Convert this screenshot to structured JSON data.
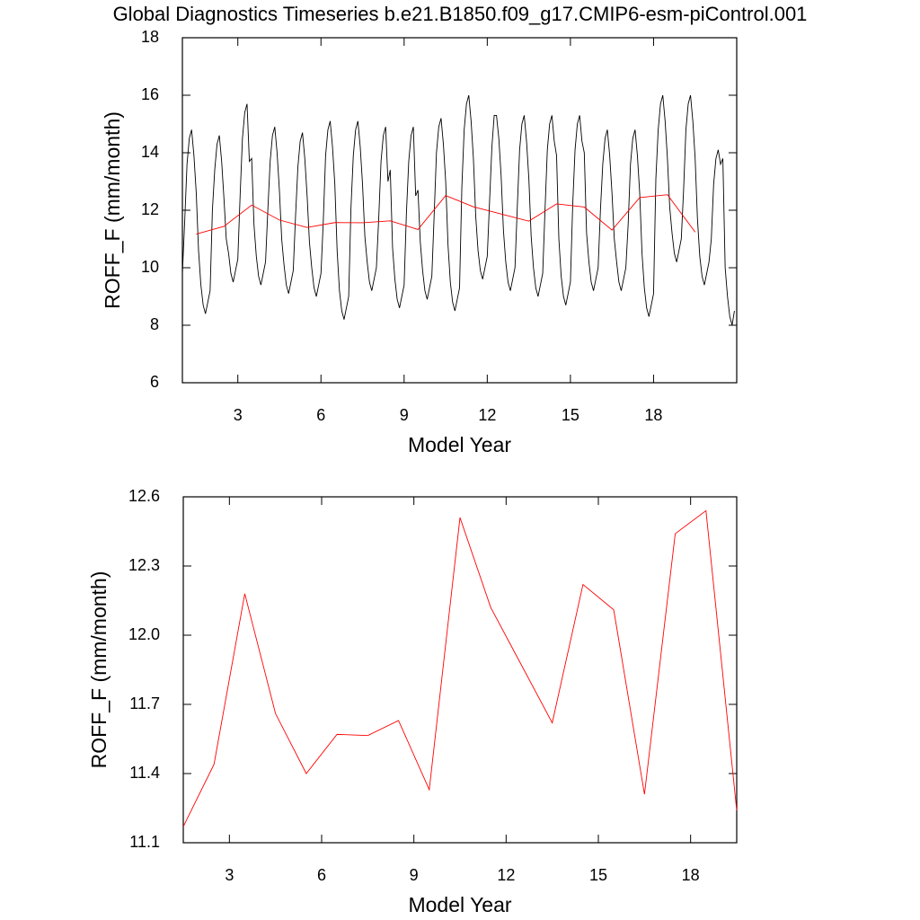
{
  "chart_data": [
    {
      "type": "line",
      "title": "Global Diagnostics Timeseries b.e21.B1850.f09_g17.CMIP6-esm-piControl.001",
      "xlabel": "Model Year",
      "ylabel": "ROFF_F (mm/month)",
      "xlim": [
        1,
        21
      ],
      "ylim": [
        6,
        18
      ],
      "xticks": [
        3,
        6,
        9,
        12,
        15,
        18
      ],
      "yticks": [
        6,
        8,
        10,
        12,
        14,
        16,
        18
      ],
      "series": [
        {
          "color": "#000000",
          "x": [
            1,
            1.083,
            1.167,
            1.25,
            1.333,
            1.417,
            1.5,
            1.583,
            1.667,
            1.75,
            1.833,
            1.917,
            2,
            2.083,
            2.167,
            2.25,
            2.333,
            2.417,
            2.5,
            2.583,
            2.667,
            2.75,
            2.833,
            2.917,
            3,
            3.083,
            3.167,
            3.25,
            3.333,
            3.417,
            3.5,
            3.583,
            3.667,
            3.75,
            3.833,
            3.917,
            4,
            4.083,
            4.167,
            4.25,
            4.333,
            4.417,
            4.5,
            4.583,
            4.667,
            4.75,
            4.833,
            4.917,
            5,
            5.083,
            5.167,
            5.25,
            5.333,
            5.417,
            5.5,
            5.583,
            5.667,
            5.75,
            5.833,
            5.917,
            6,
            6.083,
            6.167,
            6.25,
            6.333,
            6.417,
            6.5,
            6.583,
            6.667,
            6.75,
            6.833,
            6.917,
            7,
            7.083,
            7.167,
            7.25,
            7.333,
            7.417,
            7.5,
            7.583,
            7.667,
            7.75,
            7.833,
            7.917,
            8,
            8.083,
            8.167,
            8.25,
            8.333,
            8.417,
            8.5,
            8.583,
            8.667,
            8.75,
            8.833,
            8.917,
            9,
            9.083,
            9.167,
            9.25,
            9.333,
            9.417,
            9.5,
            9.583,
            9.667,
            9.75,
            9.833,
            9.917,
            10,
            10.083,
            10.167,
            10.25,
            10.333,
            10.417,
            10.5,
            10.583,
            10.667,
            10.75,
            10.833,
            10.917,
            11,
            11.083,
            11.167,
            11.25,
            11.333,
            11.417,
            11.5,
            11.583,
            11.667,
            11.75,
            11.833,
            11.917,
            12,
            12.083,
            12.167,
            12.25,
            12.333,
            12.417,
            12.5,
            12.583,
            12.667,
            12.75,
            12.833,
            12.917,
            13,
            13.083,
            13.167,
            13.25,
            13.333,
            13.417,
            13.5,
            13.583,
            13.667,
            13.75,
            13.833,
            13.917,
            14,
            14.083,
            14.167,
            14.25,
            14.333,
            14.417,
            14.5,
            14.583,
            14.667,
            14.75,
            14.833,
            14.917,
            15,
            15.083,
            15.167,
            15.25,
            15.333,
            15.417,
            15.5,
            15.583,
            15.667,
            15.75,
            15.833,
            15.917,
            16,
            16.083,
            16.167,
            16.25,
            16.333,
            16.417,
            16.5,
            16.583,
            16.667,
            16.75,
            16.833,
            16.917,
            17,
            17.083,
            17.167,
            17.25,
            17.333,
            17.417,
            17.5,
            17.583,
            17.667,
            17.75,
            17.833,
            17.917,
            18,
            18.083,
            18.167,
            18.25,
            18.333,
            18.417,
            18.5,
            18.583,
            18.667,
            18.75,
            18.833,
            18.917,
            19,
            19.083,
            19.167,
            19.25,
            19.333,
            19.417,
            19.5,
            19.583,
            19.667,
            19.75,
            19.833,
            19.917,
            20,
            20.083,
            20.167,
            20.25,
            20.333,
            20.417,
            20.5,
            20.583,
            20.667,
            20.75,
            20.833,
            20.917
          ],
          "values": [
            9.8,
            11.6,
            13.6,
            14.5,
            14.8,
            13.9,
            12.6,
            10.6,
            9.4,
            8.7,
            8.4,
            8.8,
            9.2,
            12.0,
            13.4,
            14.3,
            14.6,
            13.7,
            12.4,
            11.0,
            10.5,
            9.8,
            9.5,
            9.9,
            10.3,
            12.5,
            14.5,
            15.4,
            15.7,
            13.7,
            13.8,
            11.5,
            10.4,
            9.7,
            9.4,
            9.8,
            10.2,
            12.0,
            13.7,
            14.6,
            14.9,
            14.0,
            12.7,
            11.0,
            10.1,
            9.4,
            9.1,
            9.5,
            9.9,
            11.8,
            13.5,
            14.4,
            14.7,
            13.8,
            12.5,
            10.9,
            10.0,
            9.3,
            9.0,
            9.4,
            9.8,
            11.6,
            13.9,
            14.8,
            15.1,
            14.2,
            12.9,
            10.6,
            9.2,
            8.5,
            8.2,
            8.6,
            9.0,
            12.1,
            13.9,
            14.8,
            15.1,
            14.2,
            12.9,
            11.1,
            10.2,
            9.5,
            9.2,
            9.6,
            10.0,
            11.7,
            13.7,
            14.6,
            14.9,
            13.0,
            13.4,
            10.7,
            9.6,
            8.9,
            8.6,
            9.0,
            9.4,
            11.9,
            13.7,
            14.6,
            14.9,
            12.5,
            12.7,
            10.9,
            9.9,
            9.2,
            8.9,
            9.3,
            9.7,
            11.8,
            14.0,
            14.9,
            15.2,
            14.3,
            13.0,
            10.8,
            9.5,
            8.8,
            8.5,
            8.9,
            9.3,
            12.8,
            14.8,
            15.7,
            16.0,
            15.1,
            13.8,
            11.8,
            10.6,
            9.9,
            9.6,
            10.0,
            10.4,
            12.3,
            14.2,
            15.3,
            15.3,
            14.5,
            13.2,
            11.3,
            10.2,
            9.5,
            9.2,
            9.6,
            10.0,
            12.1,
            14.1,
            15.0,
            15.3,
            14.4,
            13.1,
            11.1,
            10.0,
            9.3,
            9.0,
            9.4,
            9.8,
            12.0,
            14.1,
            15.0,
            15.3,
            14.4,
            13.9,
            11.0,
            9.7,
            9.0,
            8.7,
            9.1,
            9.5,
            12.2,
            14.1,
            15.0,
            15.3,
            14.4,
            14.0,
            11.2,
            10.2,
            9.5,
            9.2,
            9.6,
            10.0,
            12.0,
            13.6,
            14.5,
            14.8,
            13.9,
            12.6,
            11.0,
            10.2,
            9.5,
            9.2,
            9.6,
            10.0,
            11.5,
            13.6,
            14.5,
            14.8,
            13.9,
            12.6,
            10.5,
            9.3,
            8.6,
            8.3,
            8.7,
            9.1,
            13.1,
            14.8,
            15.7,
            16.0,
            15.1,
            13.8,
            12.1,
            11.2,
            10.5,
            10.2,
            10.6,
            11.0,
            12.7,
            14.8,
            15.7,
            16.0,
            15.1,
            13.8,
            11.7,
            10.4,
            9.7,
            9.4,
            9.8,
            10.2,
            11.0,
            12.9,
            13.8,
            14.1,
            13.6,
            13.8,
            10.0,
            9.0,
            8.3,
            8.0,
            8.5
          ]
        },
        {
          "color": "#ff0000",
          "x": [
            1.5,
            2.5,
            3.5,
            4.5,
            5.5,
            6.5,
            7.5,
            8.5,
            9.5,
            10.5,
            11.5,
            12.5,
            13.5,
            14.5,
            15.5,
            16.5,
            17.5,
            18.5,
            19.5
          ],
          "values": [
            11.17,
            11.44,
            12.18,
            11.66,
            11.4,
            11.57,
            11.565,
            11.63,
            11.33,
            12.51,
            12.12,
            11.87,
            11.62,
            12.22,
            12.11,
            11.31,
            12.44,
            12.54,
            11.24
          ]
        }
      ]
    },
    {
      "type": "line",
      "xlabel": "Model Year",
      "ylabel": "ROFF_F (mm/month)",
      "xlim": [
        1.5,
        19.5
      ],
      "ylim": [
        11.1,
        12.6
      ],
      "xticks": [
        3,
        6,
        9,
        12,
        15,
        18
      ],
      "yticks": [
        11.1,
        11.4,
        11.7,
        {
          "value": 12,
          "label": "12.0"
        },
        12.3,
        12.6
      ],
      "series": [
        {
          "color": "#ff0000",
          "x": [
            1.5,
            2.5,
            3.5,
            4.5,
            5.5,
            6.5,
            7.5,
            8.5,
            9.5,
            10.5,
            11.5,
            12.5,
            13.5,
            14.5,
            15.5,
            16.5,
            17.5,
            18.5,
            19.5
          ],
          "values": [
            11.17,
            11.44,
            12.18,
            11.66,
            11.4,
            11.57,
            11.565,
            11.63,
            11.33,
            12.51,
            12.12,
            11.87,
            11.62,
            12.22,
            12.11,
            11.31,
            12.44,
            12.54,
            11.24
          ]
        }
      ]
    }
  ]
}
